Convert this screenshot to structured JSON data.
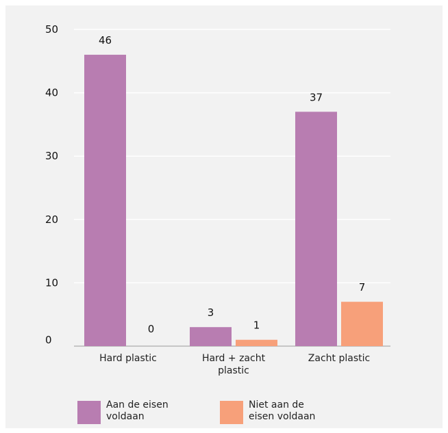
{
  "chart_data": {
    "type": "bar",
    "categories": [
      "Hard plastic",
      "Hard + zacht plastic",
      "Zacht plastic"
    ],
    "category_lines": [
      [
        "Hard plastic"
      ],
      [
        "Hard + zacht",
        "plastic"
      ],
      [
        "Zacht plastic"
      ]
    ],
    "series": [
      {
        "name": "Aan de eisen voldaan",
        "values": [
          46,
          3,
          37
        ],
        "color": "#b87db1"
      },
      {
        "name": "Niet aan de eisen voldaan",
        "values": [
          0,
          1,
          7
        ],
        "color": "#f7a07a"
      }
    ],
    "ylim": [
      0,
      50
    ],
    "yticks": [
      0,
      10,
      20,
      30,
      40,
      50
    ],
    "grid": true,
    "legend_position": "bottom-left"
  },
  "legend": {
    "items": [
      {
        "label": "Aan de eisen voldaan",
        "color": "#b87db1"
      },
      {
        "label": "Niet aan de eisen voldaan",
        "color": "#f7a07a"
      }
    ]
  },
  "colors": {
    "panel_background": "#f2f2f2",
    "gridline": "#ffffff",
    "axis_baseline": "#999999"
  }
}
